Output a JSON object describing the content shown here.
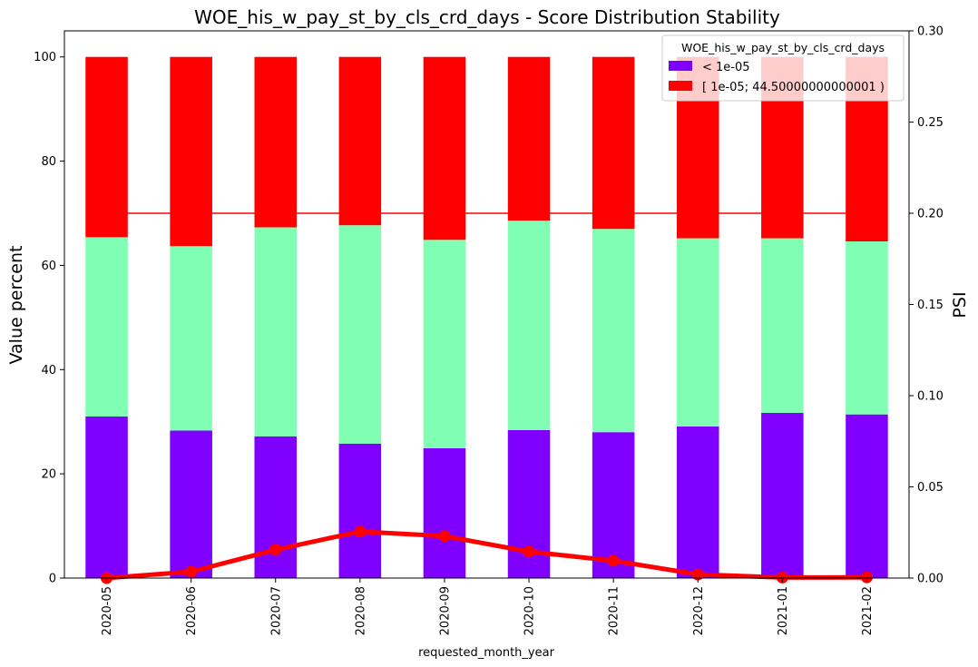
{
  "chart_data": {
    "type": "bar",
    "title": "WOE_his_w_pay_st_by_cls_crd_days  - Score Distribution Stability",
    "xlabel": "requested_month_year",
    "ylabel": "Value percent",
    "y2label": "PSI",
    "categories": [
      "2020-05",
      "2020-06",
      "2020-07",
      "2020-08",
      "2020-09",
      "2020-10",
      "2020-11",
      "2020-12",
      "2021-01",
      "2021-02"
    ],
    "stacked": true,
    "ylim": [
      0,
      105
    ],
    "y2lim": [
      0,
      0.3
    ],
    "yticks": [
      0,
      20,
      40,
      60,
      80,
      100
    ],
    "y2ticks": [
      "0.00",
      "0.05",
      "0.10",
      "0.15",
      "0.20",
      "0.25",
      "0.30"
    ],
    "series": [
      {
        "name": "< 1e-05",
        "color": "#8000ff",
        "values": [
          31.0,
          28.3,
          27.2,
          25.8,
          24.9,
          28.4,
          28.0,
          29.1,
          31.7,
          31.4
        ]
      },
      {
        "color": "#80ffb4",
        "values": [
          34.4,
          35.4,
          40.1,
          41.9,
          40.0,
          40.2,
          39.0,
          36.1,
          33.5,
          33.2
        ]
      },
      {
        "name": "[ 1e-05; 44.50000000000001 )",
        "color": "#ff0000",
        "values": [
          34.6,
          36.3,
          32.7,
          32.3,
          35.1,
          31.4,
          33.0,
          34.8,
          34.8,
          35.4
        ]
      }
    ],
    "psi": {
      "color": "#ff0000",
      "values": [
        0.0,
        0.0035,
        0.0155,
        0.0255,
        0.023,
        0.0145,
        0.0095,
        0.002,
        0.0003,
        0.0004
      ]
    },
    "threshold": {
      "value": 0.2,
      "color": "#ff0000"
    },
    "legend": {
      "title": "WOE_his_w_pay_st_by_cls_crd_days",
      "placement": "top-right",
      "entries": [
        {
          "label": "< 1e-05",
          "color": "#8000ff"
        },
        {
          "label": "[ 1e-05; 44.50000000000001 )",
          "color": "#ff0000"
        }
      ]
    },
    "grid": false
  }
}
